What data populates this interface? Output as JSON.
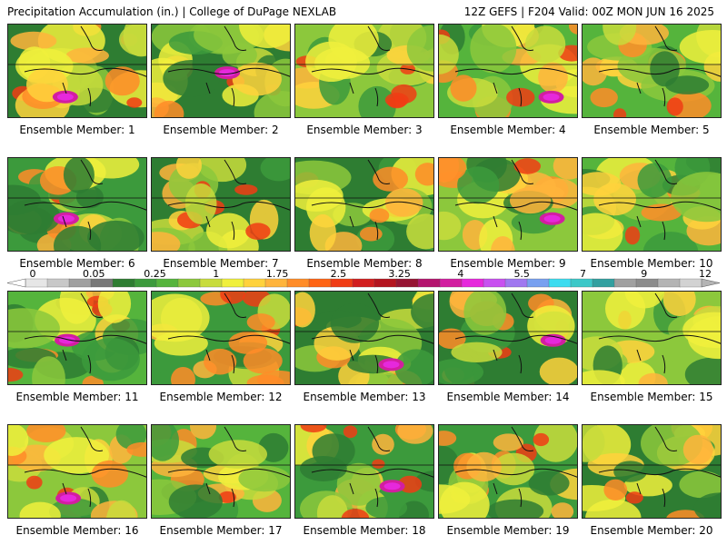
{
  "header": {
    "left": "Precipitation Accumulation (in.) | College of DuPage NEXLAB",
    "right": "12Z GEFS | F204 Valid: 00Z MON JUN 16 2025"
  },
  "members": [
    {
      "label": "Ensemble Member: 1"
    },
    {
      "label": "Ensemble Member: 2"
    },
    {
      "label": "Ensemble Member: 3"
    },
    {
      "label": "Ensemble Member: 4"
    },
    {
      "label": "Ensemble Member: 5"
    },
    {
      "label": "Ensemble Member: 6"
    },
    {
      "label": "Ensemble Member: 7"
    },
    {
      "label": "Ensemble Member: 8"
    },
    {
      "label": "Ensemble Member: 9"
    },
    {
      "label": "Ensemble Member: 10"
    },
    {
      "label": "Ensemble Member: 11"
    },
    {
      "label": "Ensemble Member: 12"
    },
    {
      "label": "Ensemble Member: 13"
    },
    {
      "label": "Ensemble Member: 14"
    },
    {
      "label": "Ensemble Member: 15"
    },
    {
      "label": "Ensemble Member: 16"
    },
    {
      "label": "Ensemble Member: 17"
    },
    {
      "label": "Ensemble Member: 18"
    },
    {
      "label": "Ensemble Member: 19"
    },
    {
      "label": "Ensemble Member: 20"
    }
  ],
  "colorbar": {
    "tick_labels": [
      "0",
      "0.05",
      "0.25",
      "1",
      "1.75",
      "2.5",
      "3.25",
      "4",
      "5.5",
      "7",
      "9",
      "12"
    ],
    "colors": [
      "#e6e6e6",
      "#c8c8c8",
      "#a0a0a0",
      "#787878",
      "#2e7d32",
      "#3c9a3c",
      "#55b43c",
      "#8cc83c",
      "#c8dc3c",
      "#f0f03c",
      "#ffd23c",
      "#ffb43c",
      "#ff8c28",
      "#ff6414",
      "#f03c14",
      "#d21e1e",
      "#b4141e",
      "#961432",
      "#b4146e",
      "#d21ea0",
      "#e628dc",
      "#c850f0",
      "#a078f0",
      "#78a0f0",
      "#3cdcf0",
      "#3cc8c8",
      "#32a0a0",
      "#a0a0a0",
      "#8c8c8c",
      "#b4b4b4",
      "#d2d2d2"
    ]
  }
}
